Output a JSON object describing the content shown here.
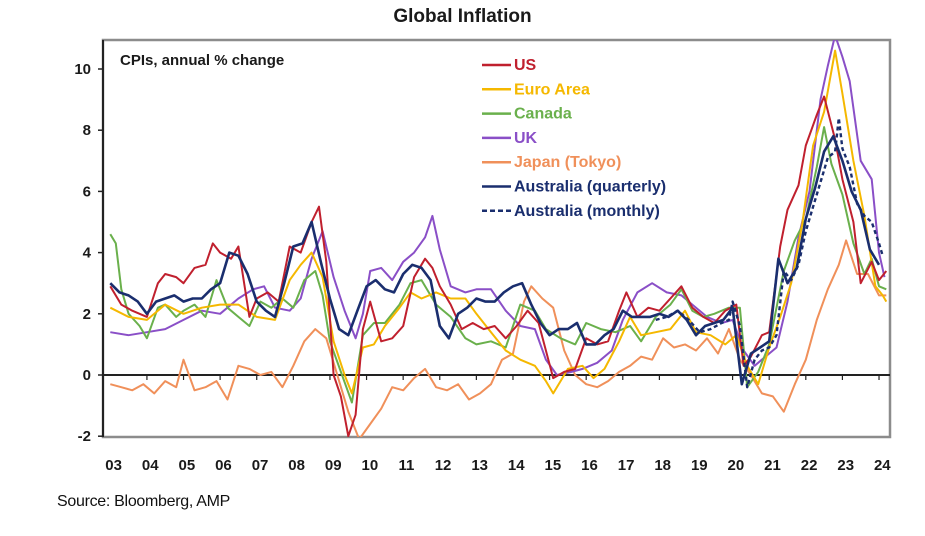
{
  "chart_data": {
    "type": "line",
    "title": "Global Inflation",
    "subtitle": "CPIs, annual % change",
    "source": "Source: Bloomberg, AMP",
    "xlabel": "",
    "ylabel": "",
    "xlim": [
      2002.8,
      2024.3
    ],
    "ylim": [
      -2,
      11
    ],
    "yticks": [
      -2,
      0,
      2,
      4,
      6,
      8,
      10
    ],
    "xtick_labels": [
      "03",
      "04",
      "05",
      "06",
      "07",
      "08",
      "09",
      "10",
      "11",
      "12",
      "13",
      "14",
      "15",
      "16",
      "17",
      "18",
      "19",
      "20",
      "21",
      "22",
      "23",
      "24"
    ],
    "grid": false,
    "legend_position": "top-center",
    "series": [
      {
        "name": "US",
        "color": "#c0202e",
        "dash": false,
        "x": [
          2003.0,
          2003.3,
          2003.6,
          2004.0,
          2004.3,
          2004.5,
          2004.8,
          2005.0,
          2005.3,
          2005.6,
          2005.8,
          2006.0,
          2006.3,
          2006.5,
          2006.8,
          2007.0,
          2007.3,
          2007.6,
          2007.9,
          2008.2,
          2008.5,
          2008.7,
          2008.9,
          2009.1,
          2009.3,
          2009.5,
          2009.7,
          2009.9,
          2010.1,
          2010.4,
          2010.7,
          2011.0,
          2011.3,
          2011.6,
          2011.8,
          2012.0,
          2012.3,
          2012.6,
          2012.9,
          2013.2,
          2013.5,
          2013.8,
          2014.1,
          2014.4,
          2014.7,
          2014.9,
          2015.1,
          2015.4,
          2015.7,
          2016.0,
          2016.3,
          2016.6,
          2016.9,
          2017.1,
          2017.4,
          2017.7,
          2018.0,
          2018.3,
          2018.6,
          2018.9,
          2019.2,
          2019.5,
          2019.8,
          2020.1,
          2020.3,
          2020.5,
          2020.8,
          2021.0,
          2021.3,
          2021.5,
          2021.8,
          2022.0,
          2022.3,
          2022.5,
          2022.8,
          2023.0,
          2023.3,
          2023.5,
          2023.8,
          2024.0,
          2024.2
        ],
        "y": [
          2.9,
          2.3,
          2.1,
          1.9,
          3.0,
          3.3,
          3.2,
          3.0,
          3.5,
          3.6,
          4.3,
          4.0,
          3.8,
          4.2,
          1.9,
          2.5,
          2.7,
          2.4,
          4.2,
          4.0,
          5.0,
          5.5,
          3.7,
          0.0,
          -0.7,
          -2.0,
          -1.3,
          1.5,
          2.4,
          1.1,
          1.2,
          1.6,
          3.2,
          3.8,
          3.5,
          2.9,
          2.3,
          1.5,
          1.7,
          1.5,
          1.6,
          1.2,
          1.6,
          2.1,
          1.7,
          0.8,
          -0.1,
          0.1,
          0.2,
          1.2,
          1.0,
          1.1,
          2.1,
          2.7,
          1.9,
          2.2,
          2.1,
          2.5,
          2.9,
          2.2,
          1.9,
          1.7,
          2.1,
          2.3,
          0.3,
          0.6,
          1.3,
          1.4,
          4.2,
          5.4,
          6.2,
          7.5,
          8.5,
          9.1,
          7.7,
          6.4,
          5.0,
          3.0,
          3.7,
          3.1,
          3.4
        ]
      },
      {
        "name": "Euro Area",
        "color": "#f5b800",
        "dash": false,
        "x": [
          2003.0,
          2003.5,
          2004.0,
          2004.5,
          2005.0,
          2005.5,
          2006.0,
          2006.5,
          2007.0,
          2007.5,
          2007.9,
          2008.2,
          2008.5,
          2008.8,
          2009.1,
          2009.4,
          2009.6,
          2009.9,
          2010.2,
          2010.5,
          2010.9,
          2011.2,
          2011.5,
          2011.9,
          2012.3,
          2012.7,
          2013.0,
          2013.4,
          2013.8,
          2014.2,
          2014.6,
          2014.9,
          2015.1,
          2015.5,
          2015.9,
          2016.2,
          2016.5,
          2016.9,
          2017.2,
          2017.5,
          2017.9,
          2018.3,
          2018.7,
          2019.0,
          2019.4,
          2019.8,
          2020.1,
          2020.4,
          2020.7,
          2021.0,
          2021.3,
          2021.6,
          2021.9,
          2022.2,
          2022.5,
          2022.8,
          2023.0,
          2023.3,
          2023.6,
          2023.9,
          2024.1,
          2024.2
        ],
        "y": [
          2.2,
          1.9,
          1.8,
          2.3,
          2.0,
          2.2,
          2.3,
          2.3,
          1.9,
          1.8,
          3.1,
          3.6,
          4.0,
          3.2,
          1.1,
          0.0,
          -0.6,
          0.9,
          1.0,
          1.6,
          2.2,
          2.7,
          2.5,
          2.7,
          2.5,
          2.5,
          2.0,
          1.4,
          0.8,
          0.5,
          0.3,
          -0.2,
          -0.6,
          0.2,
          0.3,
          -0.1,
          0.2,
          1.1,
          1.9,
          1.3,
          1.4,
          1.5,
          2.1,
          1.4,
          1.3,
          1.0,
          1.3,
          0.3,
          -0.3,
          0.9,
          1.9,
          3.0,
          4.9,
          7.5,
          8.6,
          10.6,
          9.2,
          7.0,
          5.2,
          2.9,
          2.6,
          2.4
        ]
      },
      {
        "name": "Canada",
        "color": "#6ab04c",
        "dash": false,
        "x": [
          2003.0,
          2003.15,
          2003.3,
          2003.5,
          2003.8,
          2004.0,
          2004.3,
          2004.5,
          2004.8,
          2005.0,
          2005.3,
          2005.6,
          2005.9,
          2006.2,
          2006.5,
          2006.8,
          2007.1,
          2007.4,
          2007.7,
          2008.0,
          2008.3,
          2008.6,
          2008.8,
          2009.0,
          2009.3,
          2009.6,
          2009.9,
          2010.2,
          2010.5,
          2010.9,
          2011.2,
          2011.5,
          2011.9,
          2012.3,
          2012.7,
          2013.0,
          2013.4,
          2013.8,
          2014.2,
          2014.6,
          2014.9,
          2015.3,
          2015.7,
          2016.0,
          2016.4,
          2016.8,
          2017.2,
          2017.5,
          2017.9,
          2018.3,
          2018.6,
          2018.9,
          2019.2,
          2019.5,
          2019.9,
          2020.2,
          2020.4,
          2020.7,
          2021.0,
          2021.4,
          2021.7,
          2022.0,
          2022.3,
          2022.5,
          2022.7,
          2023.0,
          2023.3,
          2023.6,
          2023.8,
          2024.0,
          2024.2
        ],
        "y": [
          4.6,
          4.3,
          2.8,
          2.0,
          1.6,
          1.2,
          2.2,
          2.3,
          1.9,
          2.1,
          2.3,
          1.9,
          3.1,
          2.2,
          1.9,
          1.6,
          2.4,
          2.2,
          2.5,
          2.2,
          3.1,
          3.4,
          2.6,
          1.1,
          0.1,
          -0.9,
          1.3,
          1.7,
          1.7,
          2.3,
          3.0,
          3.1,
          2.3,
          1.9,
          1.2,
          1.0,
          1.1,
          0.9,
          2.3,
          2.1,
          1.5,
          1.2,
          1.0,
          1.7,
          1.5,
          1.4,
          1.6,
          1.1,
          1.9,
          2.3,
          2.8,
          2.1,
          1.9,
          2.0,
          2.2,
          2.2,
          -0.4,
          0.1,
          1.0,
          3.4,
          4.4,
          5.1,
          6.8,
          8.1,
          6.9,
          5.9,
          4.3,
          3.3,
          3.8,
          2.9,
          2.8
        ]
      },
      {
        "name": "UK",
        "color": "#8a4fc7",
        "dash": false,
        "x": [
          2003.0,
          2003.5,
          2004.0,
          2004.5,
          2005.0,
          2005.5,
          2006.0,
          2006.5,
          2006.9,
          2007.2,
          2007.5,
          2007.9,
          2008.2,
          2008.5,
          2008.8,
          2009.1,
          2009.4,
          2009.7,
          2009.9,
          2010.1,
          2010.4,
          2010.7,
          2011.0,
          2011.3,
          2011.6,
          2011.8,
          2012.0,
          2012.3,
          2012.7,
          2013.0,
          2013.4,
          2013.8,
          2014.2,
          2014.6,
          2014.9,
          2015.2,
          2015.6,
          2015.9,
          2016.3,
          2016.7,
          2017.0,
          2017.4,
          2017.8,
          2018.2,
          2018.6,
          2018.9,
          2019.3,
          2019.7,
          2020.0,
          2020.3,
          2020.6,
          2020.9,
          2021.2,
          2021.5,
          2021.8,
          2022.1,
          2022.4,
          2022.6,
          2022.8,
          2023.0,
          2023.2,
          2023.5,
          2023.8,
          2024.0,
          2024.15
        ],
        "y": [
          1.4,
          1.3,
          1.4,
          1.5,
          1.8,
          2.1,
          2.0,
          2.5,
          2.8,
          2.9,
          2.2,
          2.1,
          2.5,
          3.8,
          4.7,
          3.2,
          2.1,
          1.2,
          2.0,
          3.4,
          3.5,
          3.1,
          3.7,
          4.0,
          4.5,
          5.2,
          4.1,
          2.9,
          2.7,
          2.8,
          2.8,
          2.1,
          1.6,
          1.5,
          0.5,
          0.0,
          0.1,
          0.2,
          0.4,
          0.8,
          1.8,
          2.7,
          3.0,
          2.7,
          2.6,
          2.3,
          1.9,
          1.7,
          1.8,
          0.8,
          0.3,
          0.6,
          0.9,
          2.4,
          4.5,
          6.0,
          9.0,
          10.1,
          11.1,
          10.4,
          9.6,
          7.0,
          6.4,
          4.0,
          3.2
        ]
      },
      {
        "name": "Japan (Tokyo)",
        "color": "#f0905a",
        "dash": false,
        "x": [
          2003.0,
          2003.3,
          2003.6,
          2003.9,
          2004.2,
          2004.5,
          2004.8,
          2005.0,
          2005.3,
          2005.6,
          2005.9,
          2006.2,
          2006.5,
          2006.8,
          2007.1,
          2007.4,
          2007.7,
          2008.0,
          2008.3,
          2008.6,
          2008.9,
          2009.2,
          2009.5,
          2009.8,
          2010.1,
          2010.4,
          2010.7,
          2011.0,
          2011.3,
          2011.6,
          2011.9,
          2012.2,
          2012.5,
          2012.8,
          2013.1,
          2013.4,
          2013.7,
          2014.0,
          2014.3,
          2014.5,
          2014.8,
          2015.1,
          2015.4,
          2015.7,
          2016.0,
          2016.3,
          2016.6,
          2016.9,
          2017.2,
          2017.5,
          2017.8,
          2018.1,
          2018.4,
          2018.7,
          2019.0,
          2019.3,
          2019.6,
          2019.9,
          2020.2,
          2020.5,
          2020.8,
          2021.1,
          2021.4,
          2021.7,
          2022.0,
          2022.3,
          2022.6,
          2022.9,
          2023.1,
          2023.4,
          2023.7,
          2024.0,
          2024.2
        ],
        "y": [
          -0.3,
          -0.4,
          -0.5,
          -0.3,
          -0.6,
          -0.2,
          -0.4,
          0.5,
          -0.5,
          -0.4,
          -0.2,
          -0.8,
          0.3,
          0.2,
          0.0,
          0.1,
          -0.4,
          0.3,
          1.1,
          1.5,
          1.2,
          0.0,
          -1.2,
          -2.1,
          -1.6,
          -1.1,
          -0.4,
          -0.5,
          -0.1,
          0.2,
          -0.4,
          -0.5,
          -0.3,
          -0.8,
          -0.6,
          -0.3,
          0.5,
          0.7,
          2.4,
          2.9,
          2.5,
          2.2,
          0.8,
          0.0,
          -0.3,
          -0.4,
          -0.2,
          0.1,
          0.3,
          0.6,
          0.5,
          1.2,
          0.9,
          1.0,
          0.8,
          1.2,
          0.7,
          1.5,
          0.5,
          0.0,
          -0.6,
          -0.7,
          -1.2,
          -0.3,
          0.5,
          1.8,
          2.8,
          3.6,
          4.4,
          3.3,
          3.3,
          2.6,
          2.6
        ]
      },
      {
        "name": "Australia (quarterly)",
        "color": "#1a2e6e",
        "dash": false,
        "x": [
          2003.0,
          2003.25,
          2003.5,
          2003.75,
          2004.0,
          2004.25,
          2004.5,
          2004.75,
          2005.0,
          2005.25,
          2005.5,
          2005.75,
          2006.0,
          2006.25,
          2006.5,
          2006.75,
          2007.0,
          2007.25,
          2007.5,
          2007.75,
          2008.0,
          2008.25,
          2008.5,
          2008.75,
          2009.0,
          2009.25,
          2009.5,
          2009.75,
          2010.0,
          2010.25,
          2010.5,
          2010.75,
          2011.0,
          2011.25,
          2011.5,
          2011.75,
          2012.0,
          2012.25,
          2012.5,
          2012.75,
          2013.0,
          2013.25,
          2013.5,
          2013.75,
          2014.0,
          2014.25,
          2014.5,
          2014.75,
          2015.0,
          2015.25,
          2015.5,
          2015.75,
          2016.0,
          2016.25,
          2016.5,
          2016.75,
          2017.0,
          2017.25,
          2017.5,
          2017.75,
          2018.0,
          2018.25,
          2018.5,
          2018.75,
          2019.0,
          2019.25,
          2019.5,
          2019.75,
          2020.0,
          2020.25,
          2020.5,
          2020.75,
          2021.0,
          2021.25,
          2021.5,
          2021.75,
          2022.0,
          2022.25,
          2022.5,
          2022.75,
          2023.0,
          2023.25,
          2023.5,
          2023.75,
          2024.0
        ],
        "y": [
          3.0,
          2.7,
          2.6,
          2.4,
          2.0,
          2.4,
          2.5,
          2.6,
          2.4,
          2.5,
          2.5,
          2.8,
          3.0,
          4.0,
          3.9,
          3.3,
          2.4,
          2.1,
          1.9,
          3.0,
          4.2,
          4.3,
          5.0,
          3.7,
          2.5,
          1.5,
          1.3,
          2.1,
          2.9,
          3.1,
          2.8,
          2.7,
          3.3,
          3.6,
          3.5,
          3.1,
          1.6,
          1.2,
          2.0,
          2.2,
          2.5,
          2.4,
          2.4,
          2.7,
          2.9,
          3.0,
          2.3,
          1.7,
          1.3,
          1.5,
          1.5,
          1.7,
          1.0,
          1.0,
          1.3,
          1.5,
          2.1,
          1.9,
          1.9,
          1.9,
          2.0,
          1.9,
          2.1,
          1.8,
          1.3,
          1.6,
          1.7,
          1.8,
          2.2,
          -0.3,
          0.7,
          0.9,
          1.1,
          3.8,
          3.0,
          3.5,
          5.1,
          6.1,
          7.3,
          7.8,
          7.0,
          6.0,
          5.4,
          4.1,
          3.6
        ]
      },
      {
        "name": "Australia (monthly)",
        "color": "#1a2e6e",
        "dash": true,
        "x": [
          2017.9,
          2018.2,
          2018.5,
          2018.8,
          2019.1,
          2019.4,
          2019.7,
          2019.9,
          2020.0,
          2020.2,
          2020.4,
          2020.6,
          2020.8,
          2021.0,
          2021.2,
          2021.4,
          2021.6,
          2021.8,
          2022.0,
          2022.2,
          2022.4,
          2022.6,
          2022.8,
          2022.9,
          2023.0,
          2023.2,
          2023.4,
          2023.6,
          2023.8,
          2024.0,
          2024.1
        ],
        "y": [
          1.8,
          1.9,
          2.1,
          1.8,
          1.4,
          1.5,
          1.7,
          1.8,
          2.4,
          1.6,
          -0.4,
          0.5,
          0.8,
          0.9,
          1.3,
          3.4,
          3.1,
          3.6,
          4.7,
          5.5,
          6.3,
          7.1,
          7.3,
          8.4,
          7.4,
          6.8,
          5.6,
          5.2,
          5.0,
          4.3,
          3.9
        ]
      }
    ]
  }
}
